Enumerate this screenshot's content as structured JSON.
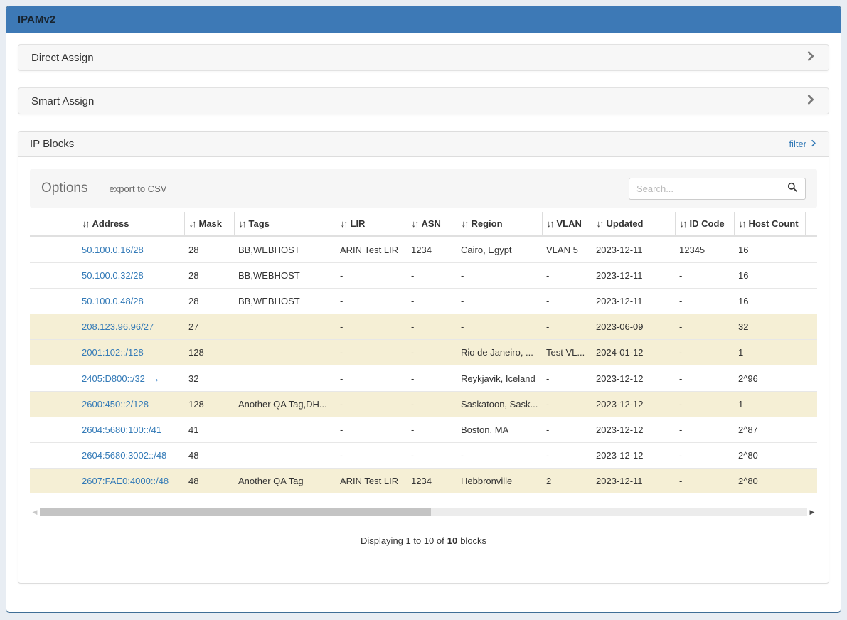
{
  "app": {
    "title": "IPAMv2"
  },
  "icons": {
    "sort_icon": "↓↑",
    "arrow_right_icon": "→",
    "scroll_left_icon": "◀",
    "scroll_right_icon": "▶"
  },
  "colors": {
    "header_bar": "#3d79b6",
    "container_border": "#3f6e96",
    "link_blue": "#337ab7",
    "row_highlight": "#f5efd5",
    "page_background": "#e8edf3"
  },
  "panels": {
    "direct_assign": {
      "label": "Direct Assign"
    },
    "smart_assign": {
      "label": "Smart Assign"
    },
    "ip_blocks": {
      "label": "IP Blocks",
      "filter_label": "filter",
      "options": {
        "title": "Options",
        "export_label": "export to CSV",
        "search_placeholder": "Search...",
        "search_value": ""
      },
      "table": {
        "columns": [
          "Address",
          "Mask",
          "Tags",
          "LIR",
          "ASN",
          "Region",
          "VLAN",
          "Updated",
          "ID Code",
          "Host Count"
        ],
        "rows": [
          {
            "address": "50.100.0.16/28",
            "has_arrow": false,
            "highlight": false,
            "mask": "28",
            "tags": "BB,WEBHOST",
            "lir": "ARIN Test LIR",
            "asn": "1234",
            "region": "Cairo, Egypt",
            "vlan": "VLAN 5",
            "updated": "2023-12-11",
            "id_code": "12345",
            "host_count": "16"
          },
          {
            "address": "50.100.0.32/28",
            "has_arrow": false,
            "highlight": false,
            "mask": "28",
            "tags": "BB,WEBHOST",
            "lir": "-",
            "asn": "-",
            "region": "-",
            "vlan": "-",
            "updated": "2023-12-11",
            "id_code": "-",
            "host_count": "16"
          },
          {
            "address": "50.100.0.48/28",
            "has_arrow": false,
            "highlight": false,
            "mask": "28",
            "tags": "BB,WEBHOST",
            "lir": "-",
            "asn": "-",
            "region": "-",
            "vlan": "-",
            "updated": "2023-12-11",
            "id_code": "-",
            "host_count": "16"
          },
          {
            "address": "208.123.96.96/27",
            "has_arrow": false,
            "highlight": true,
            "mask": "27",
            "tags": "",
            "lir": "-",
            "asn": "-",
            "region": "-",
            "vlan": "-",
            "updated": "2023-06-09",
            "id_code": "-",
            "host_count": "32"
          },
          {
            "address": "2001:102::/128",
            "has_arrow": false,
            "highlight": true,
            "mask": "128",
            "tags": "",
            "lir": "-",
            "asn": "-",
            "region": "Rio de Janeiro, ...",
            "vlan": "Test VL...",
            "updated": "2024-01-12",
            "id_code": "-",
            "host_count": "1"
          },
          {
            "address": "2405:D800::/32",
            "has_arrow": true,
            "highlight": false,
            "mask": "32",
            "tags": "",
            "lir": "-",
            "asn": "-",
            "region": "Reykjavik, Iceland",
            "vlan": "-",
            "updated": "2023-12-12",
            "id_code": "-",
            "host_count": "2^96"
          },
          {
            "address": "2600:450::2/128",
            "has_arrow": false,
            "highlight": true,
            "mask": "128",
            "tags": "Another QA Tag,DH...",
            "lir": "-",
            "asn": "-",
            "region": "Saskatoon, Sask...",
            "vlan": "-",
            "updated": "2023-12-12",
            "id_code": "-",
            "host_count": "1"
          },
          {
            "address": "2604:5680:100::/41",
            "has_arrow": false,
            "highlight": false,
            "mask": "41",
            "tags": "",
            "lir": "-",
            "asn": "-",
            "region": "Boston, MA",
            "vlan": "-",
            "updated": "2023-12-12",
            "id_code": "-",
            "host_count": "2^87"
          },
          {
            "address": "2604:5680:3002::/48",
            "has_arrow": false,
            "highlight": false,
            "mask": "48",
            "tags": "",
            "lir": "-",
            "asn": "-",
            "region": "-",
            "vlan": "-",
            "updated": "2023-12-12",
            "id_code": "-",
            "host_count": "2^80"
          },
          {
            "address": "2607:FAE0:4000::/48",
            "has_arrow": false,
            "highlight": true,
            "mask": "48",
            "tags": "Another QA Tag",
            "lir": "ARIN Test LIR",
            "asn": "1234",
            "region": "Hebbronville",
            "vlan": "2",
            "updated": "2023-12-11",
            "id_code": "-",
            "host_count": "2^80"
          }
        ]
      },
      "pagination": {
        "prefix": "Displaying 1 to 10 of",
        "count": "10",
        "suffix": "blocks"
      }
    }
  }
}
